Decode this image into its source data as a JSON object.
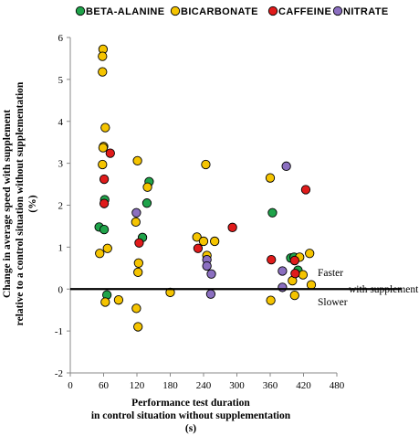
{
  "chart_data": {
    "type": "scatter",
    "title": "",
    "xlabel": [
      "Performance test duration",
      "in control situation without supplementation",
      "(s)"
    ],
    "ylabel": [
      "Change in average speed with supplement",
      "relative to a control situation without supplementation",
      "(%)"
    ],
    "xlim": [
      0,
      480
    ],
    "ylim": [
      -2,
      6
    ],
    "xticks": [
      "0",
      "60",
      "120",
      "180",
      "240",
      "300",
      "360",
      "420",
      "480"
    ],
    "yticks": [
      "-2",
      "-1",
      "0",
      "1",
      "2",
      "3",
      "4",
      "5",
      "6"
    ],
    "grid": false,
    "legend_position": "top",
    "reference_line_y": 0,
    "annotations": {
      "faster": "Faster",
      "with_supplement": "with supplement",
      "slower": "Slower"
    },
    "series": [
      {
        "name": "BETA-ALANINE",
        "color": "#1fa34a",
        "points": [
          [
            52,
            1.48
          ],
          [
            61,
            1.42
          ],
          [
            62,
            2.13
          ],
          [
            66,
            -0.14
          ],
          [
            130,
            1.23
          ],
          [
            138,
            2.05
          ],
          [
            142,
            2.56
          ],
          [
            364,
            1.82
          ],
          [
            397,
            0.74
          ],
          [
            403,
            0.76
          ],
          [
            410,
            0.45
          ]
        ]
      },
      {
        "name": "BICARBONATE",
        "color": "#f5c400",
        "points": [
          [
            53,
            0.85
          ],
          [
            59,
            5.72
          ],
          [
            58,
            5.55
          ],
          [
            58,
            5.18
          ],
          [
            63,
            3.85
          ],
          [
            60,
            3.4
          ],
          [
            59,
            3.37
          ],
          [
            58,
            2.97
          ],
          [
            63,
            -0.31
          ],
          [
            67,
            0.97
          ],
          [
            87,
            -0.26
          ],
          [
            118,
            1.6
          ],
          [
            121,
            3.06
          ],
          [
            122,
            0.4
          ],
          [
            123,
            0.62
          ],
          [
            119,
            -0.46
          ],
          [
            122,
            -0.9
          ],
          [
            139,
            2.43
          ],
          [
            180,
            -0.08
          ],
          [
            228,
            1.24
          ],
          [
            240,
            1.14
          ],
          [
            244,
            2.97
          ],
          [
            246,
            0.8
          ],
          [
            260,
            1.14
          ],
          [
            360,
            2.65
          ],
          [
            361,
            -0.27
          ],
          [
            400,
            0.2
          ],
          [
            404,
            -0.15
          ],
          [
            413,
            0.76
          ],
          [
            419,
            0.34
          ],
          [
            431,
            0.85
          ],
          [
            434,
            0.1
          ]
        ]
      },
      {
        "name": "CAFFEINE",
        "color": "#e01b1b",
        "points": [
          [
            61,
            2.62
          ],
          [
            61,
            2.04
          ],
          [
            72,
            3.24
          ],
          [
            124,
            1.1
          ],
          [
            230,
            0.97
          ],
          [
            292,
            1.47
          ],
          [
            362,
            0.7
          ],
          [
            404,
            0.68
          ],
          [
            405,
            0.37
          ],
          [
            424,
            2.37
          ]
        ]
      },
      {
        "name": "NITRATE",
        "color": "#8b6fc0",
        "points": [
          [
            119,
            1.82
          ],
          [
            246,
            0.7
          ],
          [
            246,
            0.55
          ],
          [
            254,
            0.36
          ],
          [
            253,
            -0.12
          ],
          [
            382,
            0.43
          ],
          [
            389,
            2.93
          ],
          [
            382,
            0.04
          ]
        ]
      }
    ]
  }
}
